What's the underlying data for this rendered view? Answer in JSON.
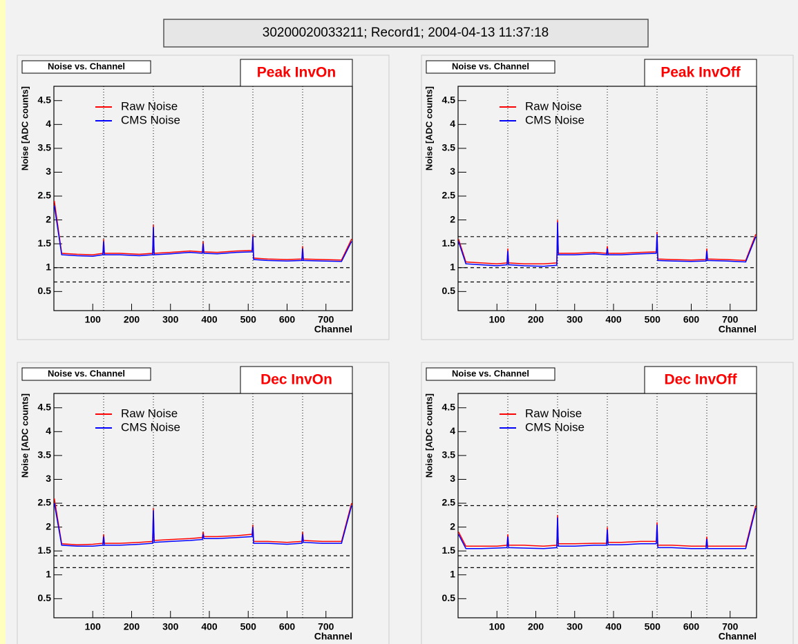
{
  "canvas_title": "30200020033211; Record1; 2004-04-13 11:37:18",
  "chart_data": [
    {
      "type": "line",
      "title": "Noise vs. Channel",
      "label": "Peak InvOn",
      "xlabel": "Channel",
      "ylabel": "Noise [ADC counts]",
      "x": [
        1,
        20,
        60,
        100,
        126,
        128,
        130,
        170,
        220,
        254,
        256,
        258,
        300,
        350,
        382,
        384,
        386,
        420,
        470,
        510,
        512,
        514,
        550,
        600,
        638,
        640,
        642,
        690,
        740,
        766
      ],
      "series": [
        {
          "name": "Raw Noise",
          "color": "#ff0000",
          "values": [
            2.4,
            1.3,
            1.28,
            1.27,
            1.3,
            1.6,
            1.3,
            1.3,
            1.28,
            1.3,
            1.9,
            1.3,
            1.32,
            1.35,
            1.33,
            1.55,
            1.33,
            1.32,
            1.35,
            1.36,
            1.7,
            1.2,
            1.18,
            1.17,
            1.18,
            1.45,
            1.18,
            1.17,
            1.16,
            1.6
          ]
        },
        {
          "name": "CMS Noise",
          "color": "#0000ff",
          "values": [
            2.3,
            1.27,
            1.25,
            1.24,
            1.27,
            1.55,
            1.27,
            1.27,
            1.25,
            1.27,
            1.85,
            1.27,
            1.29,
            1.32,
            1.3,
            1.5,
            1.3,
            1.29,
            1.32,
            1.33,
            1.65,
            1.17,
            1.15,
            1.14,
            1.15,
            1.4,
            1.15,
            1.14,
            1.13,
            1.55
          ]
        }
      ],
      "xlim": [
        0,
        768
      ],
      "ylim": [
        0.1,
        4.8
      ],
      "xticks": [
        100,
        200,
        300,
        400,
        500,
        600,
        700
      ],
      "yticks": [
        0.5,
        1,
        1.5,
        2,
        2.5,
        3,
        3.5,
        4,
        4.5
      ],
      "hlines": [
        0.7,
        1,
        1.65
      ],
      "vlines": [
        128,
        256,
        384,
        512,
        640
      ]
    },
    {
      "type": "line",
      "title": "Noise vs. Channel",
      "label": "Peak InvOff",
      "xlabel": "Channel",
      "ylabel": "Noise [ADC counts]",
      "x": [
        1,
        20,
        60,
        100,
        126,
        128,
        130,
        170,
        220,
        254,
        256,
        258,
        300,
        350,
        382,
        384,
        386,
        420,
        470,
        510,
        512,
        514,
        550,
        600,
        638,
        640,
        642,
        690,
        740,
        766
      ],
      "series": [
        {
          "name": "Raw Noise",
          "color": "#ff0000",
          "values": [
            1.6,
            1.12,
            1.1,
            1.08,
            1.1,
            1.4,
            1.1,
            1.08,
            1.08,
            1.1,
            2.0,
            1.3,
            1.3,
            1.32,
            1.3,
            1.45,
            1.3,
            1.3,
            1.32,
            1.33,
            1.75,
            1.18,
            1.17,
            1.16,
            1.17,
            1.4,
            1.18,
            1.17,
            1.15,
            1.7
          ]
        },
        {
          "name": "CMS Noise",
          "color": "#0000ff",
          "values": [
            1.55,
            1.08,
            1.06,
            1.04,
            1.06,
            1.35,
            1.06,
            1.04,
            1.03,
            1.05,
            1.95,
            1.27,
            1.27,
            1.29,
            1.27,
            1.4,
            1.27,
            1.27,
            1.29,
            1.3,
            1.7,
            1.15,
            1.14,
            1.13,
            1.14,
            1.35,
            1.15,
            1.14,
            1.12,
            1.65
          ]
        }
      ],
      "xlim": [
        0,
        768
      ],
      "ylim": [
        0.1,
        4.8
      ],
      "xticks": [
        100,
        200,
        300,
        400,
        500,
        600,
        700
      ],
      "yticks": [
        0.5,
        1,
        1.5,
        2,
        2.5,
        3,
        3.5,
        4,
        4.5
      ],
      "hlines": [
        0.7,
        1,
        1.65
      ],
      "vlines": [
        128,
        256,
        384,
        512,
        640
      ]
    },
    {
      "type": "line",
      "title": "Noise vs. Channel",
      "label": "Dec InvOn",
      "xlabel": "Channel",
      "ylabel": "Noise [ADC counts]",
      "x": [
        1,
        20,
        60,
        100,
        126,
        128,
        130,
        170,
        220,
        254,
        256,
        258,
        300,
        350,
        382,
        384,
        386,
        420,
        470,
        510,
        512,
        514,
        550,
        600,
        638,
        640,
        642,
        690,
        740,
        766
      ],
      "series": [
        {
          "name": "Raw Noise",
          "color": "#ff0000",
          "values": [
            2.6,
            1.65,
            1.63,
            1.64,
            1.66,
            1.85,
            1.66,
            1.66,
            1.68,
            1.7,
            2.4,
            1.72,
            1.74,
            1.76,
            1.78,
            1.9,
            1.8,
            1.8,
            1.82,
            1.85,
            2.05,
            1.7,
            1.7,
            1.68,
            1.7,
            1.9,
            1.72,
            1.7,
            1.7,
            2.5
          ]
        },
        {
          "name": "CMS Noise",
          "color": "#0000ff",
          "values": [
            2.5,
            1.62,
            1.6,
            1.6,
            1.62,
            1.8,
            1.62,
            1.62,
            1.64,
            1.66,
            2.35,
            1.68,
            1.7,
            1.72,
            1.74,
            1.85,
            1.76,
            1.76,
            1.78,
            1.8,
            2.0,
            1.66,
            1.66,
            1.64,
            1.66,
            1.85,
            1.68,
            1.66,
            1.66,
            2.45
          ]
        }
      ],
      "xlim": [
        0,
        768
      ],
      "ylim": [
        0.1,
        4.8
      ],
      "xticks": [
        100,
        200,
        300,
        400,
        500,
        600,
        700
      ],
      "yticks": [
        0.5,
        1,
        1.5,
        2,
        2.5,
        3,
        3.5,
        4,
        4.5
      ],
      "hlines": [
        1.15,
        1.4,
        2.45
      ],
      "vlines": [
        128,
        256,
        384,
        512,
        640
      ]
    },
    {
      "type": "line",
      "title": "Noise vs. Channel",
      "label": "Dec InvOff",
      "xlabel": "Channel",
      "ylabel": "Noise [ADC counts]",
      "x": [
        1,
        20,
        60,
        100,
        126,
        128,
        130,
        170,
        220,
        254,
        256,
        258,
        300,
        350,
        382,
        384,
        386,
        420,
        470,
        510,
        512,
        514,
        550,
        600,
        638,
        640,
        642,
        690,
        740,
        766
      ],
      "series": [
        {
          "name": "Raw Noise",
          "color": "#ff0000",
          "values": [
            1.9,
            1.6,
            1.6,
            1.6,
            1.62,
            1.85,
            1.62,
            1.62,
            1.6,
            1.62,
            2.25,
            1.65,
            1.65,
            1.66,
            1.66,
            2.0,
            1.68,
            1.68,
            1.7,
            1.7,
            2.1,
            1.62,
            1.62,
            1.6,
            1.6,
            1.8,
            1.6,
            1.6,
            1.6,
            2.45
          ]
        },
        {
          "name": "CMS Noise",
          "color": "#0000ff",
          "values": [
            1.85,
            1.55,
            1.55,
            1.56,
            1.57,
            1.8,
            1.57,
            1.56,
            1.55,
            1.57,
            2.2,
            1.6,
            1.6,
            1.62,
            1.62,
            1.95,
            1.63,
            1.63,
            1.65,
            1.65,
            2.05,
            1.57,
            1.57,
            1.55,
            1.55,
            1.75,
            1.55,
            1.55,
            1.55,
            2.4
          ]
        }
      ],
      "xlim": [
        0,
        768
      ],
      "ylim": [
        0.1,
        4.8
      ],
      "xticks": [
        100,
        200,
        300,
        400,
        500,
        600,
        700
      ],
      "yticks": [
        0.5,
        1,
        1.5,
        2,
        2.5,
        3,
        3.5,
        4,
        4.5
      ],
      "hlines": [
        1.15,
        1.4,
        2.45
      ],
      "vlines": [
        128,
        256,
        384,
        512,
        640
      ]
    }
  ]
}
